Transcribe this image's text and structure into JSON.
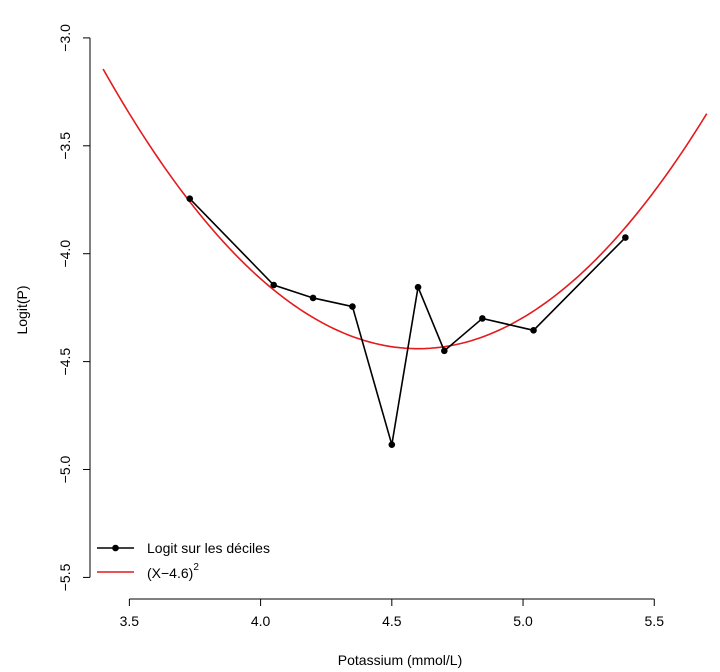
{
  "chart_data": {
    "type": "line",
    "title": "",
    "xlabel": "Potassium (mmol/L)",
    "ylabel": "Logit(P)",
    "xlim": [
      3.35,
      5.72
    ],
    "ylim": [
      -5.6,
      -2.88
    ],
    "x_ticks": [
      3.5,
      4.0,
      4.5,
      5.0,
      5.5
    ],
    "x_tick_labels": [
      "3.5",
      "4.0",
      "4.5",
      "5.0",
      "5.5"
    ],
    "y_ticks": [
      -3.0,
      -3.5,
      -4.0,
      -4.5,
      -5.0,
      -5.5
    ],
    "y_tick_labels": [
      "−3.0",
      "−3.5",
      "−4.0",
      "−4.5",
      "−5.0",
      "−5.5"
    ],
    "grid": false,
    "legend_position": "bottom-left",
    "series": [
      {
        "name": "Logit sur les déciles",
        "color": "#000000",
        "style": "line+points",
        "x": [
          3.73,
          4.05,
          4.2,
          4.35,
          4.5,
          4.6,
          4.7,
          4.845,
          5.04,
          5.39
        ],
        "y": [
          -3.745,
          -4.145,
          -4.205,
          -4.245,
          -4.885,
          -4.155,
          -4.45,
          -4.3,
          -4.355,
          -3.925
        ]
      },
      {
        "name": "(X−4.6)",
        "name_superscript": "2",
        "color": "#e41a1c",
        "style": "line",
        "curve": {
          "x_from": 3.4,
          "x_to": 5.7,
          "vertex_x": 4.6,
          "vertex_y": -4.44,
          "a": 0.9
        }
      }
    ]
  }
}
